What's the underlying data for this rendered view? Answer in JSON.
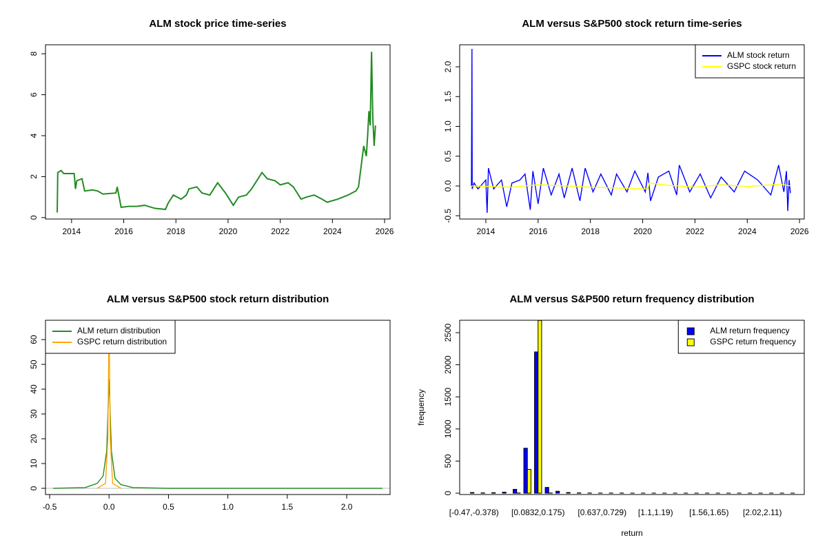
{
  "chart_data": [
    {
      "type": "line",
      "title": "ALM stock price time-series",
      "xlim": [
        2013.0,
        2026.21
      ],
      "xticks": [
        2014,
        2016,
        2018,
        2020,
        2022,
        2024,
        2026
      ],
      "ylim": [
        -0.07,
        8.44
      ],
      "yticks": [
        0,
        2,
        4,
        6,
        8
      ],
      "series": [
        {
          "name": "ALM",
          "color": "#228b22",
          "x": [
            2013.45,
            2013.47,
            2013.6,
            2013.7,
            2014.1,
            2014.15,
            2014.2,
            2014.4,
            2014.5,
            2014.8,
            2015.0,
            2015.2,
            2015.7,
            2015.75,
            2015.9,
            2016.2,
            2016.5,
            2016.8,
            2017.2,
            2017.6,
            2017.7,
            2017.9,
            2018.2,
            2018.4,
            2018.5,
            2018.8,
            2019.0,
            2019.3,
            2019.6,
            2019.9,
            2020.2,
            2020.4,
            2020.7,
            2020.9,
            2021.1,
            2021.3,
            2021.5,
            2021.8,
            2022.0,
            2022.3,
            2022.5,
            2022.6,
            2022.8,
            2023.0,
            2023.3,
            2023.6,
            2023.8,
            2024.2,
            2024.6,
            2024.9,
            2025.0,
            2025.1,
            2025.2,
            2025.3,
            2025.35,
            2025.4,
            2025.45,
            2025.5,
            2025.55,
            2025.6,
            2025.65
          ],
          "values": [
            0.25,
            2.2,
            2.3,
            2.15,
            2.15,
            1.4,
            1.8,
            1.9,
            1.3,
            1.35,
            1.3,
            1.15,
            1.2,
            1.5,
            0.5,
            0.55,
            0.55,
            0.6,
            0.45,
            0.4,
            0.7,
            1.1,
            0.9,
            1.1,
            1.4,
            1.5,
            1.2,
            1.1,
            1.7,
            1.2,
            0.6,
            1.0,
            1.1,
            1.4,
            1.8,
            2.2,
            1.9,
            1.8,
            1.6,
            1.7,
            1.5,
            1.3,
            0.9,
            1.0,
            1.1,
            0.9,
            0.75,
            0.9,
            1.1,
            1.3,
            1.5,
            2.5,
            3.5,
            3.0,
            4.0,
            5.2,
            4.5,
            8.1,
            4.8,
            3.5,
            4.5
          ]
        }
      ]
    },
    {
      "type": "line",
      "title": "ALM versus S&P500 stock return time-series",
      "xlim": [
        2013.0,
        2026.18
      ],
      "xticks": [
        2014,
        2016,
        2018,
        2020,
        2022,
        2024,
        2026
      ],
      "ylim": [
        -0.555,
        2.37
      ],
      "yticks": [
        -0.5,
        {
          "value": 0,
          "label": "0.0"
        },
        0.5,
        {
          "value": 1,
          "label": "1.0"
        },
        1.5,
        {
          "value": 2,
          "label": "2.0"
        }
      ],
      "legend": "topright",
      "series": [
        {
          "name": "ALM stock return",
          "color": "#0000ff",
          "x": [
            2013.45,
            2013.47,
            2013.48,
            2013.55,
            2013.7,
            2014.0,
            2014.05,
            2014.1,
            2014.3,
            2014.6,
            2014.8,
            2015.0,
            2015.3,
            2015.5,
            2015.7,
            2015.8,
            2016.0,
            2016.2,
            2016.5,
            2016.8,
            2017.0,
            2017.3,
            2017.6,
            2017.8,
            2018.1,
            2018.4,
            2018.8,
            2019.0,
            2019.4,
            2019.7,
            2020.1,
            2020.2,
            2020.3,
            2020.6,
            2021.0,
            2021.3,
            2021.4,
            2021.8,
            2022.2,
            2022.6,
            2023.0,
            2023.5,
            2023.9,
            2024.4,
            2024.9,
            2025.2,
            2025.4,
            2025.5,
            2025.55,
            2025.6,
            2025.65
          ],
          "values": [
            0,
            2.3,
            -0.05,
            0.05,
            -0.05,
            0.1,
            -0.45,
            0.3,
            -0.05,
            0.1,
            -0.35,
            0.05,
            0.1,
            0.2,
            -0.4,
            0.25,
            -0.3,
            0.3,
            -0.15,
            0.2,
            -0.2,
            0.3,
            -0.25,
            0.3,
            -0.1,
            0.2,
            -0.15,
            0.2,
            -0.1,
            0.25,
            -0.1,
            0.22,
            -0.25,
            0.15,
            0.25,
            -0.15,
            0.35,
            -0.1,
            0.2,
            -0.2,
            0.15,
            -0.1,
            0.25,
            0.1,
            -0.15,
            0.35,
            -0.1,
            0.25,
            -0.42,
            0.1,
            -0.12
          ]
        },
        {
          "name": "GSPC stock return",
          "color": "#ffff00",
          "x": [
            2013.45,
            2015.0,
            2016.0,
            2018.0,
            2020.2,
            2020.25,
            2021.0,
            2022.0,
            2023.0,
            2024.0,
            2025.3,
            2025.65
          ],
          "values": [
            0,
            -0.02,
            0.02,
            -0.02,
            -0.05,
            0.05,
            0.01,
            -0.02,
            0.02,
            -0.01,
            0.03,
            0
          ]
        }
      ]
    },
    {
      "type": "line",
      "title": "ALM versus S&P500 stock return distribution",
      "xlim": [
        -0.535,
        2.365
      ],
      "xticks": [
        -0.5,
        {
          "value": 0,
          "label": "0.0"
        },
        0.5,
        {
          "value": 1,
          "label": "1.0"
        },
        1.5,
        {
          "value": 2,
          "label": "2.0"
        }
      ],
      "ylim": [
        -2.5,
        67.8
      ],
      "yticks": [
        0,
        10,
        20,
        30,
        40,
        50,
        60
      ],
      "legend": "topleft",
      "series": [
        {
          "name": "ALM return distribution",
          "color": "#228b22",
          "x": [
            -0.47,
            -0.2,
            -0.1,
            -0.05,
            -0.02,
            0,
            0.02,
            0.05,
            0.1,
            0.2,
            0.5,
            2.3
          ],
          "values": [
            0,
            0.3,
            2,
            5,
            15,
            44,
            15,
            4,
            1.5,
            0.3,
            0,
            0
          ]
        },
        {
          "name": "GSPC return distribution",
          "color": "#ffa500",
          "x": [
            -0.1,
            -0.03,
            -0.01,
            0,
            0.01,
            0.03,
            0.1
          ],
          "values": [
            0,
            2,
            20,
            70,
            20,
            2,
            0
          ]
        }
      ]
    },
    {
      "type": "bar",
      "title": "ALM versus S&P500 return frequency distribution",
      "xlabel": "return",
      "ylabel": "frequency",
      "ylim": [
        -21,
        2693
      ],
      "yticks": [
        0,
        500,
        1000,
        1500,
        2000,
        2500
      ],
      "legend": "topright",
      "categories": [
        "[-0.47,-0.378)",
        null,
        null,
        null,
        null,
        null,
        "[0.0832,0.175)",
        null,
        null,
        null,
        null,
        null,
        "[0.637,0.729)",
        null,
        null,
        null,
        null,
        "[1.1,1.19)",
        null,
        null,
        null,
        null,
        "[1.56,1.65)",
        null,
        null,
        null,
        null,
        "[2.02,2.11)",
        null,
        null,
        null
      ],
      "series": [
        {
          "name": "ALM return frequency",
          "color": "#0000ff",
          "values": [
            10,
            5,
            8,
            15,
            60,
            700,
            2200,
            90,
            30,
            10,
            5,
            3,
            2,
            2,
            2,
            1,
            1,
            1,
            1,
            1,
            1,
            1,
            1,
            1,
            1,
            1,
            1,
            1,
            1,
            1,
            1
          ]
        },
        {
          "name": "GSPC return frequency",
          "color": "#ffff00",
          "values": [
            0,
            0,
            0,
            0,
            3,
            370,
            2690,
            3,
            0,
            0,
            0,
            0,
            0,
            0,
            0,
            0,
            0,
            0,
            0,
            0,
            0,
            0,
            0,
            0,
            0,
            0,
            0,
            0,
            0,
            0,
            0
          ]
        }
      ]
    }
  ]
}
